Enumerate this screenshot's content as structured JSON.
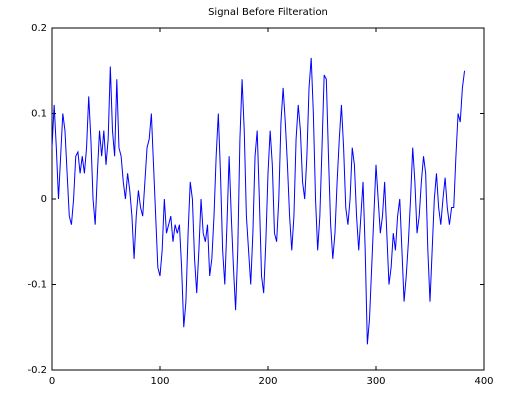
{
  "chart_data": {
    "type": "line",
    "title": "Signal Before Filteration",
    "xlim": [
      0,
      400
    ],
    "xticks": [
      0,
      100,
      200,
      300,
      400
    ],
    "ylim": [
      -0.2,
      0.2
    ],
    "yticks": [
      -0.2,
      -0.1,
      0,
      0.1,
      0.2
    ],
    "grid": false,
    "x": [
      0,
      2,
      4,
      6,
      8,
      10,
      12,
      14,
      16,
      18,
      20,
      22,
      24,
      26,
      28,
      30,
      32,
      34,
      36,
      38,
      40,
      42,
      44,
      46,
      48,
      50,
      52,
      54,
      56,
      58,
      60,
      62,
      64,
      66,
      68,
      70,
      72,
      74,
      76,
      78,
      80,
      82,
      84,
      86,
      88,
      90,
      92,
      94,
      96,
      98,
      100,
      102,
      104,
      106,
      108,
      110,
      112,
      114,
      116,
      118,
      120,
      122,
      124,
      126,
      128,
      130,
      132,
      134,
      136,
      138,
      140,
      142,
      144,
      146,
      148,
      150,
      152,
      154,
      156,
      158,
      160,
      162,
      164,
      166,
      168,
      170,
      172,
      174,
      176,
      178,
      180,
      182,
      184,
      186,
      188,
      190,
      192,
      194,
      196,
      198,
      200,
      202,
      204,
      206,
      208,
      210,
      212,
      214,
      216,
      218,
      220,
      222,
      224,
      226,
      228,
      230,
      232,
      234,
      236,
      238,
      240,
      242,
      244,
      246,
      248,
      250,
      252,
      254,
      256,
      258,
      260,
      262,
      264,
      266,
      268,
      270,
      272,
      274,
      276,
      278,
      280,
      282,
      284,
      286,
      288,
      290,
      292,
      294,
      296,
      298,
      300,
      302,
      304,
      306,
      308,
      310,
      312,
      314,
      316,
      318,
      320,
      322,
      324,
      326,
      328,
      330,
      332,
      334,
      336,
      338,
      340,
      342,
      344,
      346,
      348,
      350,
      352,
      354,
      356,
      358,
      360,
      362,
      364,
      366,
      368,
      370,
      372,
      374,
      376,
      378,
      380,
      382
    ],
    "series": [
      {
        "color": "#0000ff",
        "values": [
          0.06,
          0.11,
          0.06,
          0.0,
          0.05,
          0.1,
          0.08,
          0.03,
          -0.02,
          -0.03,
          0.0,
          0.05,
          0.055,
          0.03,
          0.05,
          0.03,
          0.06,
          0.12,
          0.07,
          0.0,
          -0.03,
          0.03,
          0.08,
          0.05,
          0.08,
          0.04,
          0.07,
          0.155,
          0.08,
          0.05,
          0.14,
          0.06,
          0.05,
          0.02,
          0.0,
          0.03,
          0.01,
          -0.02,
          -0.07,
          -0.02,
          0.01,
          -0.01,
          -0.02,
          0.02,
          0.06,
          0.07,
          0.1,
          0.04,
          -0.02,
          -0.08,
          -0.09,
          -0.06,
          0.0,
          -0.04,
          -0.03,
          -0.02,
          -0.05,
          -0.03,
          -0.04,
          -0.03,
          -0.08,
          -0.15,
          -0.12,
          -0.04,
          0.02,
          0.0,
          -0.07,
          -0.11,
          -0.06,
          0.0,
          -0.04,
          -0.05,
          -0.03,
          -0.09,
          -0.07,
          -0.02,
          0.05,
          0.1,
          0.03,
          -0.06,
          -0.1,
          -0.03,
          0.05,
          -0.02,
          -0.08,
          -0.13,
          -0.06,
          0.07,
          0.14,
          0.08,
          -0.02,
          -0.06,
          -0.1,
          -0.04,
          0.05,
          0.08,
          0.0,
          -0.09,
          -0.11,
          -0.05,
          0.03,
          0.08,
          0.04,
          -0.04,
          -0.05,
          0.0,
          0.09,
          0.13,
          0.09,
          0.04,
          -0.02,
          -0.06,
          -0.02,
          0.07,
          0.11,
          0.08,
          0.02,
          0.0,
          0.05,
          0.13,
          0.165,
          0.1,
          0.0,
          -0.06,
          -0.02,
          0.06,
          0.145,
          0.14,
          0.05,
          -0.03,
          -0.07,
          -0.04,
          0.02,
          0.07,
          0.11,
          0.06,
          -0.01,
          -0.03,
          0.0,
          0.06,
          0.04,
          -0.02,
          -0.06,
          -0.02,
          0.02,
          -0.06,
          -0.17,
          -0.14,
          -0.08,
          -0.02,
          0.04,
          0.0,
          -0.04,
          -0.02,
          0.02,
          -0.04,
          -0.1,
          -0.08,
          -0.04,
          -0.06,
          -0.02,
          0.0,
          -0.06,
          -0.12,
          -0.09,
          -0.05,
          0.0,
          0.06,
          0.02,
          -0.04,
          -0.02,
          0.02,
          0.05,
          0.03,
          -0.06,
          -0.12,
          -0.06,
          0.0,
          0.03,
          -0.01,
          -0.03,
          0.0,
          0.025,
          -0.01,
          -0.03,
          -0.01,
          -0.01,
          0.05,
          0.1,
          0.09,
          0.13,
          0.15
        ]
      }
    ]
  }
}
